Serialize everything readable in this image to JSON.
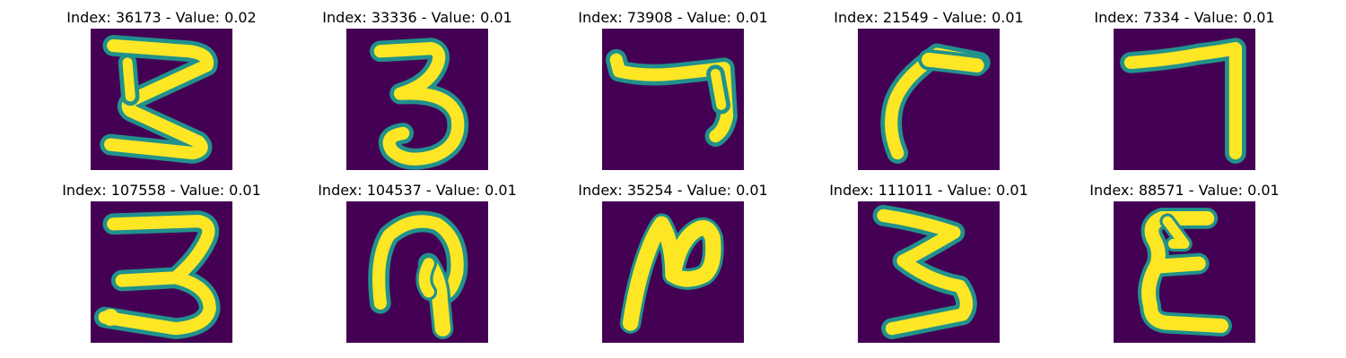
{
  "colors": {
    "background": "#440154",
    "mid_low": "#31688e",
    "mid": "#21918c",
    "mid_high": "#5ec962",
    "foreground": "#fde725"
  },
  "panels": [
    {
      "title": "Index: 36173 - Value: 0.02",
      "icon": "handwritten-digit-3"
    },
    {
      "title": "Index: 33336 - Value: 0.01",
      "icon": "handwritten-digit-3"
    },
    {
      "title": "Index: 73908 - Value: 0.01",
      "icon": "handwritten-digit-7"
    },
    {
      "title": "Index: 21549 - Value: 0.01",
      "icon": "handwritten-digit-7"
    },
    {
      "title": "Index: 7334 - Value: 0.01",
      "icon": "handwritten-digit-7"
    },
    {
      "title": "Index: 107558 - Value: 0.01",
      "icon": "handwritten-digit-3"
    },
    {
      "title": "Index: 104537 - Value: 0.01",
      "icon": "handwritten-digit-loop"
    },
    {
      "title": "Index: 35254 - Value: 0.01",
      "icon": "handwritten-digit-2"
    },
    {
      "title": "Index: 111011 - Value: 0.01",
      "icon": "handwritten-digit-3"
    },
    {
      "title": "Index: 88571 - Value: 0.01",
      "icon": "handwritten-digit-3-mirrored"
    }
  ]
}
